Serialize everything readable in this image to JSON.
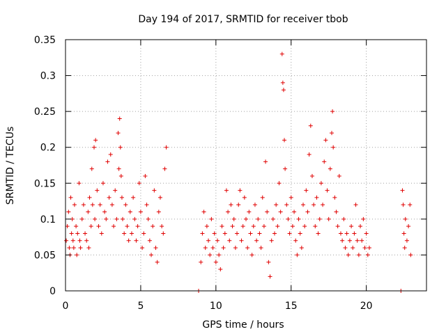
{
  "chart_data": {
    "type": "scatter",
    "title": "Day 194 of 2017, SRMTID for receiver tbob",
    "xlabel": "GPS time / hours",
    "ylabel": "SRMTID / TECUs",
    "xlim": [
      0,
      24
    ],
    "ylim": [
      0,
      0.35
    ],
    "x_ticks": [
      0,
      5,
      10,
      15,
      20
    ],
    "y_ticks": [
      0,
      0.05,
      0.1,
      0.15,
      0.2,
      0.25,
      0.3,
      0.35
    ],
    "x_tick_labels": [
      "0",
      "5",
      "10",
      "15",
      "20"
    ],
    "y_tick_labels": [
      "0",
      "0.05",
      "0.1",
      "0.15",
      "0.2",
      "0.25",
      "0.3",
      "0.35"
    ],
    "grid": true,
    "marker": "plus",
    "color": "#e00000",
    "series": [
      {
        "name": "SRMTID",
        "points": [
          [
            0.05,
            0.07
          ],
          [
            0.12,
            0.09
          ],
          [
            0.2,
            0.11
          ],
          [
            0.25,
            0.06
          ],
          [
            0.3,
            0.05
          ],
          [
            0.35,
            0.13
          ],
          [
            0.4,
            0.08
          ],
          [
            0.45,
            0.1
          ],
          [
            0.5,
            0.07
          ],
          [
            0.55,
            0.06
          ],
          [
            0.6,
            0.12
          ],
          [
            0.7,
            0.09
          ],
          [
            0.75,
            0.05
          ],
          [
            0.8,
            0.08
          ],
          [
            0.9,
            0.15
          ],
          [
            0.95,
            0.07
          ],
          [
            1.0,
            0.06
          ],
          [
            1.1,
            0.1
          ],
          [
            1.2,
            0.12
          ],
          [
            1.3,
            0.08
          ],
          [
            1.4,
            0.07
          ],
          [
            1.5,
            0.11
          ],
          [
            1.55,
            0.06
          ],
          [
            1.6,
            0.13
          ],
          [
            1.7,
            0.09
          ],
          [
            1.75,
            0.17
          ],
          [
            1.8,
            0.12
          ],
          [
            1.9,
            0.2
          ],
          [
            1.95,
            0.1
          ],
          [
            2.0,
            0.21
          ],
          [
            2.1,
            0.14
          ],
          [
            2.2,
            0.09
          ],
          [
            2.3,
            0.12
          ],
          [
            2.4,
            0.08
          ],
          [
            2.5,
            0.15
          ],
          [
            2.6,
            0.11
          ],
          [
            2.7,
            0.1
          ],
          [
            2.8,
            0.18
          ],
          [
            2.9,
            0.13
          ],
          [
            3.0,
            0.19
          ],
          [
            3.1,
            0.12
          ],
          [
            3.2,
            0.09
          ],
          [
            3.3,
            0.14
          ],
          [
            3.4,
            0.1
          ],
          [
            3.5,
            0.22
          ],
          [
            3.55,
            0.17
          ],
          [
            3.6,
            0.24
          ],
          [
            3.65,
            0.2
          ],
          [
            3.7,
            0.16
          ],
          [
            3.75,
            0.13
          ],
          [
            3.8,
            0.1
          ],
          [
            3.9,
            0.08
          ],
          [
            4.0,
            0.12
          ],
          [
            4.1,
            0.09
          ],
          [
            4.2,
            0.07
          ],
          [
            4.3,
            0.11
          ],
          [
            4.4,
            0.08
          ],
          [
            4.5,
            0.13
          ],
          [
            4.6,
            0.1
          ],
          [
            4.7,
            0.07
          ],
          [
            4.8,
            0.09
          ],
          [
            4.9,
            0.15
          ],
          [
            5.0,
            0.11
          ],
          [
            5.1,
            0.06
          ],
          [
            5.2,
            0.08
          ],
          [
            5.3,
            0.16
          ],
          [
            5.4,
            0.12
          ],
          [
            5.5,
            0.1
          ],
          [
            5.6,
            0.07
          ],
          [
            5.7,
            0.05
          ],
          [
            5.8,
            0.09
          ],
          [
            5.9,
            0.14
          ],
          [
            6.0,
            0.06
          ],
          [
            6.1,
            0.04
          ],
          [
            6.2,
            0.11
          ],
          [
            6.3,
            0.13
          ],
          [
            6.4,
            0.09
          ],
          [
            6.5,
            0.08
          ],
          [
            6.6,
            0.17
          ],
          [
            6.7,
            0.2
          ],
          [
            8.85,
            0.0
          ],
          [
            9.0,
            0.04
          ],
          [
            9.1,
            0.08
          ],
          [
            9.2,
            0.11
          ],
          [
            9.3,
            0.06
          ],
          [
            9.4,
            0.09
          ],
          [
            9.5,
            0.07
          ],
          [
            9.6,
            0.05
          ],
          [
            9.7,
            0.1
          ],
          [
            9.8,
            0.06
          ],
          [
            9.9,
            0.08
          ],
          [
            10.0,
            0.04
          ],
          [
            10.1,
            0.07
          ],
          [
            10.2,
            0.05
          ],
          [
            10.3,
            0.03
          ],
          [
            10.4,
            0.09
          ],
          [
            10.5,
            0.06
          ],
          [
            10.6,
            0.08
          ],
          [
            10.7,
            0.14
          ],
          [
            10.8,
            0.11
          ],
          [
            10.9,
            0.07
          ],
          [
            11.0,
            0.12
          ],
          [
            11.1,
            0.09
          ],
          [
            11.2,
            0.1
          ],
          [
            11.3,
            0.06
          ],
          [
            11.4,
            0.08
          ],
          [
            11.5,
            0.12
          ],
          [
            11.6,
            0.14
          ],
          [
            11.7,
            0.07
          ],
          [
            11.8,
            0.09
          ],
          [
            11.9,
            0.13
          ],
          [
            12.0,
            0.1
          ],
          [
            12.1,
            0.06
          ],
          [
            12.2,
            0.11
          ],
          [
            12.3,
            0.08
          ],
          [
            12.4,
            0.05
          ],
          [
            12.5,
            0.09
          ],
          [
            12.6,
            0.12
          ],
          [
            12.7,
            0.07
          ],
          [
            12.8,
            0.1
          ],
          [
            12.9,
            0.08
          ],
          [
            13.0,
            0.06
          ],
          [
            13.1,
            0.13
          ],
          [
            13.2,
            0.09
          ],
          [
            13.3,
            0.18
          ],
          [
            13.4,
            0.11
          ],
          [
            13.5,
            0.04
          ],
          [
            13.6,
            0.02
          ],
          [
            13.7,
            0.07
          ],
          [
            13.8,
            0.1
          ],
          [
            13.9,
            0.08
          ],
          [
            14.0,
            0.12
          ],
          [
            14.1,
            0.09
          ],
          [
            14.2,
            0.15
          ],
          [
            14.3,
            0.11
          ],
          [
            14.4,
            0.33
          ],
          [
            14.45,
            0.29
          ],
          [
            14.5,
            0.28
          ],
          [
            14.55,
            0.21
          ],
          [
            14.6,
            0.17
          ],
          [
            14.7,
            0.12
          ],
          [
            14.8,
            0.1
          ],
          [
            14.9,
            0.08
          ],
          [
            15.0,
            0.13
          ],
          [
            15.1,
            0.09
          ],
          [
            15.2,
            0.11
          ],
          [
            15.3,
            0.07
          ],
          [
            15.4,
            0.05
          ],
          [
            15.5,
            0.1
          ],
          [
            15.6,
            0.08
          ],
          [
            15.7,
            0.06
          ],
          [
            15.8,
            0.12
          ],
          [
            15.9,
            0.09
          ],
          [
            16.0,
            0.14
          ],
          [
            16.1,
            0.11
          ],
          [
            16.2,
            0.19
          ],
          [
            16.3,
            0.23
          ],
          [
            16.4,
            0.16
          ],
          [
            16.5,
            0.12
          ],
          [
            16.6,
            0.09
          ],
          [
            16.7,
            0.13
          ],
          [
            16.8,
            0.08
          ],
          [
            16.9,
            0.1
          ],
          [
            17.0,
            0.15
          ],
          [
            17.1,
            0.12
          ],
          [
            17.2,
            0.18
          ],
          [
            17.3,
            0.21
          ],
          [
            17.4,
            0.14
          ],
          [
            17.5,
            0.1
          ],
          [
            17.6,
            0.17
          ],
          [
            17.7,
            0.22
          ],
          [
            17.75,
            0.25
          ],
          [
            17.8,
            0.2
          ],
          [
            17.9,
            0.13
          ],
          [
            18.0,
            0.11
          ],
          [
            18.1,
            0.09
          ],
          [
            18.2,
            0.16
          ],
          [
            18.3,
            0.08
          ],
          [
            18.4,
            0.07
          ],
          [
            18.5,
            0.1
          ],
          [
            18.6,
            0.06
          ],
          [
            18.7,
            0.08
          ],
          [
            18.8,
            0.05
          ],
          [
            18.9,
            0.07
          ],
          [
            19.0,
            0.09
          ],
          [
            19.1,
            0.06
          ],
          [
            19.2,
            0.08
          ],
          [
            19.3,
            0.12
          ],
          [
            19.4,
            0.07
          ],
          [
            19.5,
            0.05
          ],
          [
            19.6,
            0.09
          ],
          [
            19.7,
            0.07
          ],
          [
            19.8,
            0.1
          ],
          [
            19.9,
            0.06
          ],
          [
            20.0,
            0.08
          ],
          [
            20.1,
            0.05
          ],
          [
            20.2,
            0.06
          ],
          [
            22.3,
            0.0
          ],
          [
            22.4,
            0.14
          ],
          [
            22.45,
            0.12
          ],
          [
            22.5,
            0.08
          ],
          [
            22.55,
            0.06
          ],
          [
            22.6,
            0.1
          ],
          [
            22.7,
            0.07
          ],
          [
            22.8,
            0.09
          ],
          [
            22.9,
            0.12
          ],
          [
            22.95,
            0.05
          ]
        ]
      }
    ]
  }
}
